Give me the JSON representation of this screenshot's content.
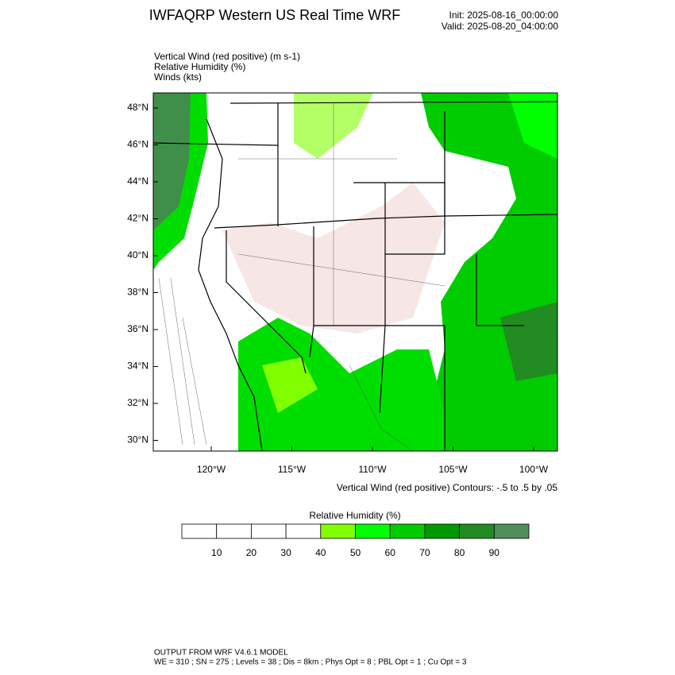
{
  "header": {
    "title": "IWFAQRP Western US Real Time WRF",
    "init": "Init: 2025-08-16_00:00:00",
    "valid": "Valid: 2025-08-20_04:00:00"
  },
  "fields": [
    "Vertical Wind (red positive)   (m s-1)",
    "Relative Humidity   (%)",
    "Winds   (kts)"
  ],
  "map": {
    "lat_labels": [
      "48°N",
      "46°N",
      "44°N",
      "42°N",
      "40°N",
      "38°N",
      "36°N",
      "34°N",
      "32°N",
      "30°N"
    ],
    "lon_labels": [
      "120°W",
      "115°W",
      "110°W",
      "105°W",
      "100°W"
    ],
    "contour_note": "Vertical Wind (red positive) Contours: -.5 to .5 by .05"
  },
  "colorbar": {
    "title": "Relative Humidity  (%)",
    "labels": [
      "10",
      "20",
      "30",
      "40",
      "50",
      "60",
      "70",
      "80",
      "90"
    ],
    "colors": [
      "#ffffff",
      "#ffffff",
      "#ffffff",
      "#ffffff",
      "#80ff00",
      "#00ff00",
      "#00cc00",
      "#009900",
      "#228b22",
      "#4f8f5a"
    ]
  },
  "footer": {
    "line1": "OUTPUT FROM WRF V4.6.1 MODEL",
    "line2": "WE = 310 ; SN = 275 ; Levels = 38 ; Dis = 8km ; Phys Opt = 8 ; PBL Opt = 1 ; Cu Opt = 3"
  }
}
